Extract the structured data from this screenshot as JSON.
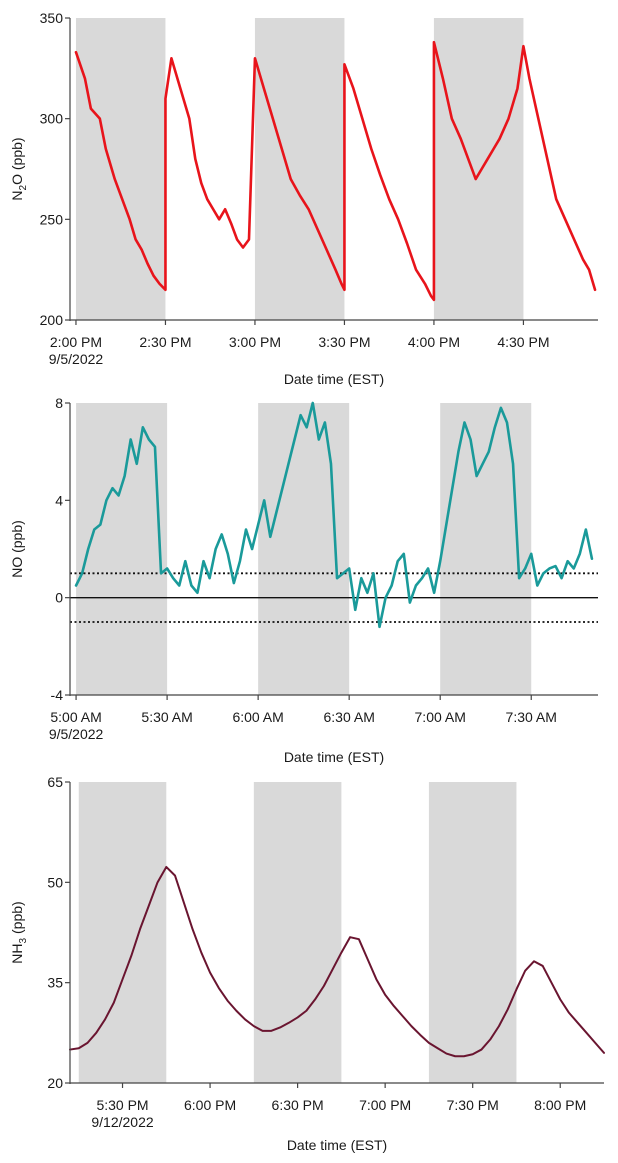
{
  "chart_data": [
    {
      "type": "line",
      "ylabel": "N2O (ppb)",
      "ylabel_main": "N",
      "ylabel_sub": "2",
      "ylabel_rest": "O (ppb)",
      "xlabel": "Date time (EST)",
      "ylim": [
        200,
        350
      ],
      "xlim": [
        "2022-09-05 13:58",
        "2022-09-05 04:55 PM"
      ],
      "yticks": [
        "200",
        "250",
        "300",
        "350"
      ],
      "ytick_values": [
        200,
        250,
        300,
        350
      ],
      "xticks": [
        {
          "value": "2022-09-05 14:00",
          "label": "2:00 PM",
          "sublabel": "9/5/2022"
        },
        {
          "value": "2022-09-05 14:30",
          "label": "2:30 PM"
        },
        {
          "value": "2022-09-05 15:00",
          "label": "3:00 PM"
        },
        {
          "value": "2022-09-05 15:30",
          "label": "3:30 PM"
        },
        {
          "value": "2022-09-05 16:00",
          "label": "4:00 PM"
        },
        {
          "value": "2022-09-05 16:30",
          "label": "4:30 PM"
        }
      ],
      "shaded_spans": [
        [
          "2022-09-05 14:00",
          "2022-09-05 14:30"
        ],
        [
          "2022-09-05 15:00",
          "2022-09-05 15:30"
        ],
        [
          "2022-09-05 16:00",
          "2022-09-05 16:30"
        ]
      ],
      "line_color": "#e8141b",
      "series": [
        {
          "x": [
            "2022-09-05 14:00",
            "2022-09-05 14:03",
            "2022-09-05 14:05",
            "2022-09-05 14:08",
            "2022-09-05 14:10",
            "2022-09-05 14:13",
            "2022-09-05 14:15",
            "2022-09-05 14:18",
            "2022-09-05 14:20",
            "2022-09-05 14:22",
            "2022-09-05 14:24",
            "2022-09-05 14:26",
            "2022-09-05 14:28",
            "2022-09-05 14:30",
            "2022-09-05 14:30",
            "2022-09-05 14:32",
            "2022-09-05 14:35",
            "2022-09-05 14:38",
            "2022-09-05 14:40",
            "2022-09-05 14:42",
            "2022-09-05 14:44",
            "2022-09-05 14:46",
            "2022-09-05 14:48",
            "2022-09-05 14:50",
            "2022-09-05 14:52",
            "2022-09-05 14:54",
            "2022-09-05 14:56",
            "2022-09-05 14:58",
            "2022-09-05 15:00",
            "2022-09-05 15:03",
            "2022-09-05 15:06",
            "2022-09-05 15:09",
            "2022-09-05 15:12",
            "2022-09-05 15:15",
            "2022-09-05 15:18",
            "2022-09-05 15:21",
            "2022-09-05 15:24",
            "2022-09-05 15:27",
            "2022-09-05 15:29",
            "2022-09-05 15:30",
            "2022-09-05 15:30",
            "2022-09-05 15:33",
            "2022-09-05 15:36",
            "2022-09-05 15:39",
            "2022-09-05 15:42",
            "2022-09-05 15:45",
            "2022-09-05 15:48",
            "2022-09-05 15:51",
            "2022-09-05 15:54",
            "2022-09-05 15:57",
            "2022-09-05 15:59",
            "2022-09-05 16:00",
            "2022-09-05 16:00",
            "2022-09-05 16:03",
            "2022-09-05 16:06",
            "2022-09-05 16:09",
            "2022-09-05 16:12",
            "2022-09-05 16:14",
            "2022-09-05 16:16",
            "2022-09-05 16:18",
            "2022-09-05 16:20",
            "2022-09-05 16:22",
            "2022-09-05 16:25",
            "2022-09-05 16:28",
            "2022-09-05 16:30",
            "2022-09-05 16:32",
            "2022-09-05 16:35",
            "2022-09-05 16:38",
            "2022-09-05 16:41",
            "2022-09-05 16:44",
            "2022-09-05 16:47",
            "2022-09-05 16:50",
            "2022-09-05 16:52",
            "2022-09-05 16:54"
          ],
          "y": [
            333,
            320,
            305,
            300,
            285,
            270,
            262,
            250,
            240,
            235,
            228,
            222,
            218,
            215,
            310,
            330,
            315,
            300,
            280,
            268,
            260,
            255,
            250,
            255,
            248,
            240,
            236,
            240,
            330,
            315,
            300,
            285,
            270,
            262,
            255,
            245,
            235,
            225,
            218,
            215,
            327,
            315,
            300,
            285,
            272,
            260,
            250,
            238,
            225,
            218,
            212,
            210,
            338,
            320,
            300,
            290,
            278,
            270,
            275,
            280,
            285,
            290,
            300,
            315,
            336,
            320,
            300,
            280,
            260,
            250,
            240,
            230,
            225,
            215
          ]
        }
      ]
    },
    {
      "type": "line",
      "ylabel": "NO (ppb)",
      "xlabel": "Date time (EST)",
      "ylim": [
        -4,
        8
      ],
      "xlim": [
        "2022-09-05 04:58",
        "2022-09-05 07:52"
      ],
      "yticks": [
        "-4",
        "0",
        "4",
        "8"
      ],
      "ytick_values": [
        -4,
        0,
        4,
        8
      ],
      "xticks": [
        {
          "value": "2022-09-05 05:00",
          "label": "5:00 AM",
          "sublabel": "9/5/2022"
        },
        {
          "value": "2022-09-05 05:30",
          "label": "5:30 AM"
        },
        {
          "value": "2022-09-05 06:00",
          "label": "6:00 AM"
        },
        {
          "value": "2022-09-05 06:30",
          "label": "6:30 AM"
        },
        {
          "value": "2022-09-05 07:00",
          "label": "7:00 AM"
        },
        {
          "value": "2022-09-05 07:30",
          "label": "7:30 AM"
        }
      ],
      "shaded_spans": [
        [
          "2022-09-05 05:00",
          "2022-09-05 05:30"
        ],
        [
          "2022-09-05 06:00",
          "2022-09-05 06:30"
        ],
        [
          "2022-09-05 07:00",
          "2022-09-05 07:30"
        ]
      ],
      "reference_lines": [
        {
          "y": 1,
          "style": "dotted"
        },
        {
          "y": 0,
          "style": "solid"
        },
        {
          "y": -1,
          "style": "dotted"
        }
      ],
      "line_color": "#1a9a9a",
      "series": [
        {
          "x": [
            "2022-09-05 05:00",
            "2022-09-05 05:02",
            "2022-09-05 05:04",
            "2022-09-05 05:06",
            "2022-09-05 05:08",
            "2022-09-05 05:10",
            "2022-09-05 05:12",
            "2022-09-05 05:14",
            "2022-09-05 05:16",
            "2022-09-05 05:18",
            "2022-09-05 05:20",
            "2022-09-05 05:22",
            "2022-09-05 05:24",
            "2022-09-05 05:26",
            "2022-09-05 05:28",
            "2022-09-05 05:30",
            "2022-09-05 05:32",
            "2022-09-05 05:34",
            "2022-09-05 05:36",
            "2022-09-05 05:38",
            "2022-09-05 05:40",
            "2022-09-05 05:42",
            "2022-09-05 05:44",
            "2022-09-05 05:46",
            "2022-09-05 05:48",
            "2022-09-05 05:50",
            "2022-09-05 05:52",
            "2022-09-05 05:54",
            "2022-09-05 05:56",
            "2022-09-05 05:58",
            "2022-09-05 06:00",
            "2022-09-05 06:02",
            "2022-09-05 06:04",
            "2022-09-05 06:06",
            "2022-09-05 06:08",
            "2022-09-05 06:10",
            "2022-09-05 06:12",
            "2022-09-05 06:14",
            "2022-09-05 06:16",
            "2022-09-05 06:18",
            "2022-09-05 06:20",
            "2022-09-05 06:22",
            "2022-09-05 06:24",
            "2022-09-05 06:26",
            "2022-09-05 06:28",
            "2022-09-05 06:30",
            "2022-09-05 06:32",
            "2022-09-05 06:34",
            "2022-09-05 06:36",
            "2022-09-05 06:38",
            "2022-09-05 06:40",
            "2022-09-05 06:42",
            "2022-09-05 06:44",
            "2022-09-05 06:46",
            "2022-09-05 06:48",
            "2022-09-05 06:50",
            "2022-09-05 06:52",
            "2022-09-05 06:54",
            "2022-09-05 06:56",
            "2022-09-05 06:58",
            "2022-09-05 07:00",
            "2022-09-05 07:02",
            "2022-09-05 07:04",
            "2022-09-05 07:06",
            "2022-09-05 07:08",
            "2022-09-05 07:10",
            "2022-09-05 07:12",
            "2022-09-05 07:14",
            "2022-09-05 07:16",
            "2022-09-05 07:18",
            "2022-09-05 07:20",
            "2022-09-05 07:22",
            "2022-09-05 07:24",
            "2022-09-05 07:26",
            "2022-09-05 07:28",
            "2022-09-05 07:30",
            "2022-09-05 07:32",
            "2022-09-05 07:34",
            "2022-09-05 07:36",
            "2022-09-05 07:38",
            "2022-09-05 07:40",
            "2022-09-05 07:42",
            "2022-09-05 07:44",
            "2022-09-05 07:46",
            "2022-09-05 07:48",
            "2022-09-05 07:50"
          ],
          "y": [
            0.5,
            1,
            2,
            2.8,
            3,
            4,
            4.5,
            4.2,
            5,
            6.5,
            5.5,
            7,
            6.5,
            6.2,
            1,
            1.2,
            0.8,
            0.5,
            1.5,
            0.5,
            0.2,
            1.5,
            0.8,
            2,
            2.6,
            1.8,
            0.6,
            1.5,
            2.8,
            2,
            3,
            4,
            2.5,
            3.5,
            4.5,
            5.5,
            6.5,
            7.5,
            7,
            8,
            6.5,
            7.2,
            5.5,
            0.8,
            1,
            1.2,
            -0.5,
            0.8,
            0.2,
            1,
            -1.2,
            0,
            0.5,
            1.5,
            1.8,
            -0.2,
            0.5,
            0.8,
            1.2,
            0.2,
            1.5,
            3,
            4.5,
            6,
            7.2,
            6.5,
            5,
            5.5,
            6,
            7,
            7.8,
            7.2,
            5.5,
            0.8,
            1.2,
            1.8,
            0.5,
            1,
            1.2,
            1.3,
            0.8,
            1.5,
            1.2,
            1.8,
            2.8,
            1.6
          ]
        }
      ]
    },
    {
      "type": "line",
      "ylabel": "NH3 (ppb)",
      "ylabel_main": "NH",
      "ylabel_sub": "3",
      "ylabel_rest": " (ppb)",
      "xlabel": "Date time (EST)",
      "ylim": [
        20,
        65
      ],
      "xlim": [
        "2022-09-12 17:12",
        "2022-09-12 20:15"
      ],
      "yticks": [
        "20",
        "35",
        "50",
        "65"
      ],
      "ytick_values": [
        20,
        35,
        50,
        65
      ],
      "xticks": [
        {
          "value": "2022-09-12 17:30",
          "label": "5:30 PM",
          "sublabel": "9/12/2022"
        },
        {
          "value": "2022-09-12 18:00",
          "label": "6:00 PM"
        },
        {
          "value": "2022-09-12 18:30",
          "label": "6:30 PM"
        },
        {
          "value": "2022-09-12 19:00",
          "label": "7:00 PM"
        },
        {
          "value": "2022-09-12 19:30",
          "label": "7:30 PM"
        },
        {
          "value": "2022-09-12 20:00",
          "label": "8:00 PM"
        }
      ],
      "shaded_spans": [
        [
          "2022-09-12 17:15",
          "2022-09-12 17:45"
        ],
        [
          "2022-09-12 18:15",
          "2022-09-12 18:45"
        ],
        [
          "2022-09-12 19:15",
          "2022-09-12 19:45"
        ]
      ],
      "line_color": "#6a1530",
      "series": [
        {
          "x": [
            "2022-09-12 17:12",
            "2022-09-12 17:15",
            "2022-09-12 17:18",
            "2022-09-12 17:21",
            "2022-09-12 17:24",
            "2022-09-12 17:27",
            "2022-09-12 17:30",
            "2022-09-12 17:33",
            "2022-09-12 17:36",
            "2022-09-12 17:39",
            "2022-09-12 17:42",
            "2022-09-12 17:45",
            "2022-09-12 17:48",
            "2022-09-12 17:51",
            "2022-09-12 17:54",
            "2022-09-12 17:57",
            "2022-09-12 18:00",
            "2022-09-12 18:03",
            "2022-09-12 18:06",
            "2022-09-12 18:09",
            "2022-09-12 18:12",
            "2022-09-12 18:15",
            "2022-09-12 18:18",
            "2022-09-12 18:21",
            "2022-09-12 18:24",
            "2022-09-12 18:27",
            "2022-09-12 18:30",
            "2022-09-12 18:33",
            "2022-09-12 18:36",
            "2022-09-12 18:39",
            "2022-09-12 18:42",
            "2022-09-12 18:45",
            "2022-09-12 18:48",
            "2022-09-12 18:51",
            "2022-09-12 18:54",
            "2022-09-12 18:57",
            "2022-09-12 19:00",
            "2022-09-12 19:03",
            "2022-09-12 19:06",
            "2022-09-12 19:09",
            "2022-09-12 19:12",
            "2022-09-12 19:15",
            "2022-09-12 19:18",
            "2022-09-12 19:21",
            "2022-09-12 19:24",
            "2022-09-12 19:27",
            "2022-09-12 19:30",
            "2022-09-12 19:33",
            "2022-09-12 19:36",
            "2022-09-12 19:39",
            "2022-09-12 19:42",
            "2022-09-12 19:45",
            "2022-09-12 19:48",
            "2022-09-12 19:51",
            "2022-09-12 19:54",
            "2022-09-12 19:57",
            "2022-09-12 20:00",
            "2022-09-12 20:03",
            "2022-09-12 20:06",
            "2022-09-12 20:09",
            "2022-09-12 20:12",
            "2022-09-12 20:15"
          ],
          "y": [
            25,
            25.2,
            26,
            27.5,
            29.5,
            32,
            35.5,
            39,
            43,
            46.5,
            50,
            52.3,
            51,
            47,
            43,
            39.5,
            36.5,
            34.2,
            32.3,
            30.8,
            29.5,
            28.5,
            27.8,
            27.8,
            28.3,
            29,
            29.8,
            30.8,
            32.5,
            34.5,
            37,
            39.5,
            41.8,
            41.5,
            38.5,
            35.5,
            33.2,
            31.5,
            30,
            28.5,
            27.2,
            26,
            25.2,
            24.4,
            24,
            24,
            24.3,
            25,
            26.5,
            28.5,
            31,
            34,
            36.8,
            38.2,
            37.5,
            35,
            32.5,
            30.5,
            29,
            27.5,
            26,
            24.5
          ]
        }
      ]
    }
  ]
}
